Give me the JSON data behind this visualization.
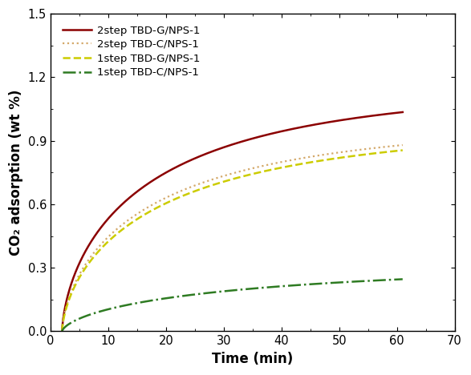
{
  "title": "",
  "xlabel": "Time (min)",
  "ylabel": "CO₂ adsorption (wt %)",
  "xlim": [
    0,
    70
  ],
  "ylim": [
    0.0,
    1.5
  ],
  "xticks": [
    0,
    10,
    20,
    30,
    40,
    50,
    60,
    70
  ],
  "yticks": [
    0.0,
    0.3,
    0.6,
    0.9,
    1.2,
    1.5
  ],
  "series": [
    {
      "label": "2step TBD-G/NPS-1",
      "color": "#8B0000",
      "linestyle": "-",
      "linewidth": 1.8,
      "a_sat": 1.155,
      "k": 0.16,
      "t0": 2.0
    },
    {
      "label": "2step TBD-C/NPS-1",
      "color": "#D4A96A",
      "linestyle": ":",
      "linewidth": 1.6,
      "a_sat": 0.99,
      "k": 0.155,
      "t0": 2.0
    },
    {
      "label": "1step TBD-G/NPS-1",
      "color": "#CCCC00",
      "linestyle": "--",
      "linewidth": 1.8,
      "a_sat": 0.975,
      "k": 0.148,
      "t0": 2.0
    },
    {
      "label": "1step TBD-C/NPS-1",
      "color": "#2E7B22",
      "linestyle": "-.",
      "linewidth": 1.8,
      "a_sat": 0.325,
      "k": 0.1,
      "t0": 2.0
    }
  ],
  "background_color": "#ffffff",
  "legend_fontsize": 9.5,
  "axis_fontsize": 12,
  "tick_fontsize": 10.5
}
